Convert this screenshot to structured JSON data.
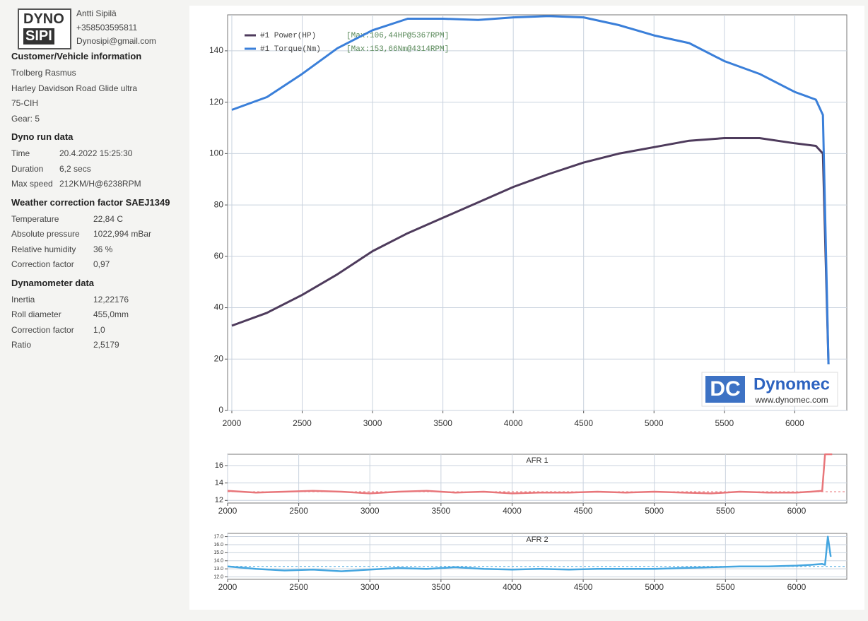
{
  "header": {
    "name": "Antti Sipilä",
    "phone": "+358503595811",
    "email": "Dynosipi@gmail.com",
    "logo": [
      "DYNO",
      "SIPI"
    ]
  },
  "sections": [
    {
      "title": "Customer/Vehicle information",
      "rows": [
        [
          "Trolberg Rasmus"
        ],
        [
          "Harley Davidson Road Glide ultra"
        ],
        [
          "75-CIH"
        ],
        [
          "Gear: 5"
        ]
      ]
    },
    {
      "title": "Dyno run data",
      "rows": [
        [
          "Time",
          "20.4.2022 15:25:30"
        ],
        [
          "Duration",
          "6,2 secs"
        ],
        [
          "Max speed",
          "212KM/H@6238RPM"
        ]
      ]
    },
    {
      "title": "Weather correction factor SAEJ1349",
      "rows": [
        [
          "Temperature",
          "22,84 C"
        ],
        [
          "Absolute pressure",
          "1022,994 mBar"
        ],
        [
          "Relative humidity",
          "36 %"
        ],
        [
          "Correction factor",
          "0,97"
        ]
      ]
    },
    {
      "title": "Dynamometer data",
      "rows": [
        [
          "Inertia",
          "12,22176"
        ],
        [
          "Roll diameter",
          "455,0mm"
        ],
        [
          "Correction factor",
          "1,0"
        ],
        [
          "Ratio",
          "2,5179"
        ]
      ]
    }
  ],
  "dynomec_logo": {
    "mark": "DC",
    "brand": "Dynomec",
    "url": "www.dynomec.com"
  },
  "chart_data": [
    {
      "type": "line",
      "grid": true,
      "x": [
        2000,
        2250,
        2500,
        2750,
        3000,
        3250,
        3500,
        3750,
        4000,
        4250,
        4500,
        4750,
        5000,
        5250,
        5500,
        5750,
        6000,
        6150,
        6200,
        6240
      ],
      "xlim": [
        1970,
        6370
      ],
      "ylim": [
        0,
        154
      ],
      "xticks": [
        2000,
        2500,
        3000,
        3500,
        4000,
        4500,
        5000,
        5500,
        6000
      ],
      "yticks": [
        0,
        20,
        40,
        60,
        80,
        100,
        120,
        140
      ],
      "series": [
        {
          "name": "#1 Power(HP)",
          "annotation": "[Max:106,44HP@5367RPM]",
          "color": "#4e3b5c",
          "values": [
            33,
            38,
            45,
            53,
            62,
            69,
            75,
            81,
            87,
            92,
            96.5,
            100,
            102.5,
            105,
            106,
            106,
            104,
            103,
            100,
            18
          ]
        },
        {
          "name": "#1 Torque(Nm)",
          "annotation": "[Max:153,66Nm@4314RPM]",
          "color": "#3a7fd9",
          "values": [
            117,
            122,
            131,
            141,
            148,
            152.5,
            152.5,
            152,
            153,
            153.5,
            153,
            150,
            146,
            143,
            136,
            131,
            124,
            121,
            115,
            18
          ]
        }
      ]
    },
    {
      "type": "line",
      "grid": true,
      "title": "AFR 1",
      "reference_line": 13,
      "x": [
        2000,
        2200,
        2400,
        2600,
        2800,
        3000,
        3200,
        3400,
        3600,
        3800,
        4000,
        4200,
        4400,
        4600,
        4800,
        5000,
        5200,
        5400,
        5600,
        5800,
        6000,
        6100,
        6180,
        6200,
        6250
      ],
      "xlim": [
        2000,
        6353
      ],
      "ylim": [
        11.7,
        17.3
      ],
      "xticks": [
        2000,
        2500,
        3000,
        3500,
        4000,
        4500,
        5000,
        5500,
        6000
      ],
      "yticks": [
        12,
        14,
        16
      ],
      "series": [
        {
          "color": "#e8767a",
          "values": [
            13.1,
            12.9,
            13.0,
            13.1,
            13.0,
            12.8,
            13.0,
            13.1,
            12.9,
            13.0,
            12.8,
            12.9,
            12.9,
            13.0,
            12.9,
            13.0,
            12.9,
            12.8,
            13.0,
            12.9,
            12.9,
            13.0,
            13.1,
            17.3,
            17.3
          ]
        }
      ]
    },
    {
      "type": "line",
      "grid": true,
      "title": "AFR 2",
      "reference_line": 13.3,
      "x": [
        2000,
        2200,
        2400,
        2600,
        2800,
        3000,
        3200,
        3400,
        3600,
        3800,
        4000,
        4200,
        4400,
        4600,
        4800,
        5000,
        5200,
        5400,
        5600,
        5800,
        6000,
        6100,
        6180,
        6200,
        6220,
        6240
      ],
      "xlim": [
        2000,
        6353
      ],
      "ylim": [
        11.7,
        17.4
      ],
      "xticks": [
        2000,
        2500,
        3000,
        3500,
        4000,
        4500,
        5000,
        5500,
        6000
      ],
      "yticks": [
        {
          "value": 12,
          "label": "12.0"
        },
        {
          "value": 13,
          "label": "13.0"
        },
        {
          "value": 14,
          "label": "14.0"
        },
        {
          "value": 15,
          "label": "15.0"
        },
        {
          "value": 16,
          "label": "16.0"
        },
        {
          "value": 17,
          "label": "17.0"
        }
      ],
      "series": [
        {
          "color": "#45a6e0",
          "values": [
            13.3,
            13.0,
            12.8,
            12.9,
            12.7,
            12.9,
            13.1,
            13.0,
            13.2,
            13.0,
            12.9,
            13.0,
            12.9,
            13.0,
            13.0,
            13.0,
            13.1,
            13.2,
            13.3,
            13.3,
            13.4,
            13.5,
            13.6,
            13.5,
            17.0,
            14.5
          ]
        }
      ]
    }
  ]
}
